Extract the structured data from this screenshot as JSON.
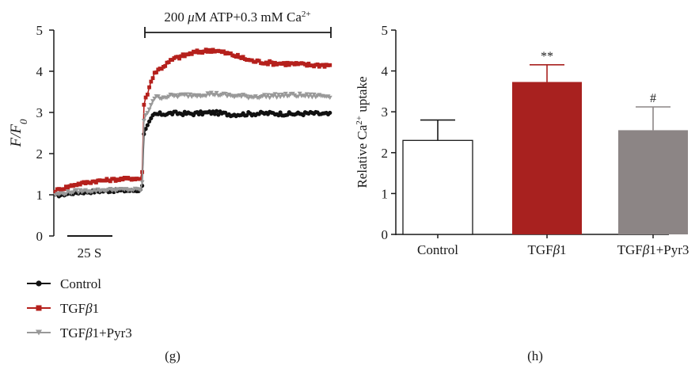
{
  "chart_data": [
    {
      "panel": "(g)",
      "type": "line",
      "ylabel": "F/F0",
      "ylim": [
        0,
        5
      ],
      "yticks": [
        0,
        1,
        2,
        3,
        4,
        5
      ],
      "scale_bar": "25 S",
      "stimulus_label": "200 μM ATP+0.3 mM Ca2+",
      "x_seconds": [
        0,
        10,
        20,
        30,
        40,
        44,
        45,
        50,
        60,
        70,
        80,
        90,
        100,
        110,
        120,
        130,
        140
      ],
      "series": [
        {
          "name": "Control",
          "color": "#111111",
          "marker": "circle",
          "values": [
            0.98,
            1.05,
            1.08,
            1.1,
            1.1,
            1.12,
            2.5,
            2.95,
            2.98,
            2.97,
            3.0,
            2.95,
            2.97,
            2.98,
            2.96,
            2.98,
            2.95
          ]
        },
        {
          "name": "TGFβ1",
          "color": "#b5201c",
          "marker": "square",
          "values": [
            1.1,
            1.25,
            1.33,
            1.37,
            1.4,
            1.38,
            3.2,
            3.95,
            4.3,
            4.45,
            4.52,
            4.4,
            4.25,
            4.2,
            4.18,
            4.15,
            4.15
          ]
        },
        {
          "name": "TGFβ1+Pyr3",
          "color": "#999999",
          "marker": "triangle",
          "values": [
            1.0,
            1.08,
            1.1,
            1.12,
            1.12,
            1.12,
            2.8,
            3.35,
            3.4,
            3.42,
            3.45,
            3.4,
            3.38,
            3.4,
            3.42,
            3.4,
            3.4
          ]
        }
      ]
    },
    {
      "panel": "(h)",
      "type": "bar",
      "ylabel": "Relative Ca2+ uptake",
      "ylim": [
        0,
        5
      ],
      "yticks": [
        0,
        1,
        2,
        3,
        4,
        5
      ],
      "categories": [
        "Control",
        "TGFβ1",
        "TGFβ1+Pyr3"
      ],
      "values": [
        2.3,
        3.73,
        2.55
      ],
      "errors": [
        0.5,
        0.42,
        0.57
      ],
      "colors": [
        "#ffffff",
        "#a8211f",
        "#8c8585"
      ],
      "annotations": [
        "",
        "**",
        "#"
      ]
    }
  ]
}
